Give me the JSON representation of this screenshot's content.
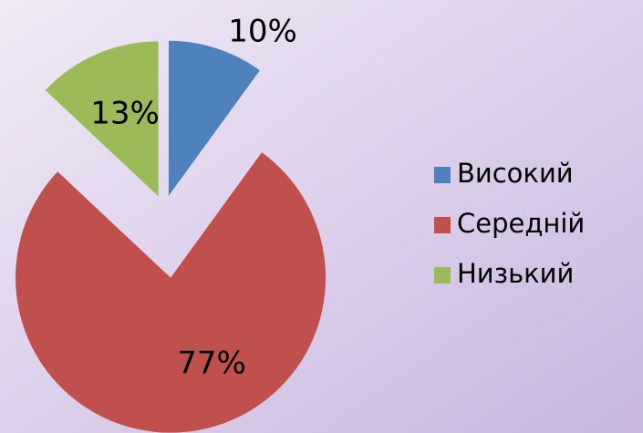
{
  "chart_data": {
    "type": "pie",
    "categories": [
      "Високий",
      "Середній",
      "Низький"
    ],
    "values": [
      10,
      77,
      13
    ],
    "value_labels": [
      "10%",
      "77%",
      "13%"
    ],
    "colors": [
      "#4f81bd",
      "#c0504d",
      "#9bbb59"
    ],
    "legend": "right"
  }
}
